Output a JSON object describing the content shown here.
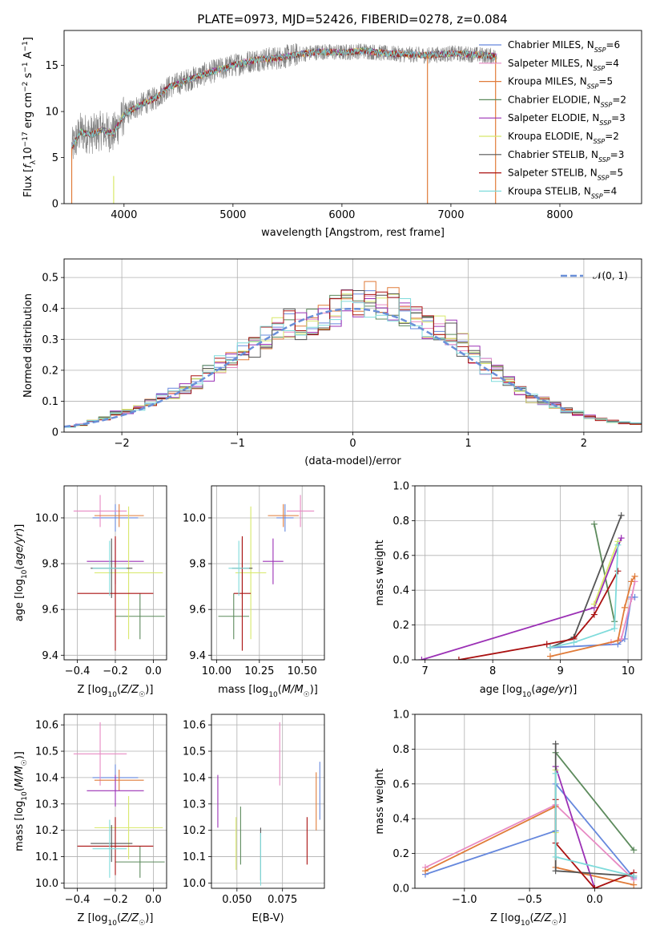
{
  "figure": {
    "title": "PLATE=0973, MJD=52426, FIBERID=0278, z=0.084"
  },
  "colors": {
    "Chabrier MILES": "#6688dd",
    "Salpeter MILES": "#e78ac3",
    "Kroupa MILES": "#e07b39",
    "Chabrier ELODIE": "#5c8a5c",
    "Salpeter ELODIE": "#9b30b5",
    "Kroupa ELODIE": "#d8e86a",
    "Chabrier STELIB": "#555555",
    "Salpeter STELIB": "#aa1111",
    "Kroupa STELIB": "#7fdbdb",
    "data": "#808080",
    "normal": "#6a8fd8"
  },
  "legend": {
    "spectrum": [
      {
        "label": "Chabrier MILES",
        "nssp": "6"
      },
      {
        "label": "Salpeter MILES",
        "nssp": "4"
      },
      {
        "label": "Kroupa MILES",
        "nssp": "5"
      },
      {
        "label": "Chabrier ELODIE",
        "nssp": "2"
      },
      {
        "label": "Salpeter ELODIE",
        "nssp": "3"
      },
      {
        "label": "Kroupa ELODIE",
        "nssp": "2"
      },
      {
        "label": "Chabrier STELIB",
        "nssp": "3"
      },
      {
        "label": "Salpeter STELIB",
        "nssp": "5"
      },
      {
        "label": "Kroupa STELIB",
        "nssp": "4"
      }
    ],
    "hist": "𝒩(0, 1)"
  },
  "chart_data": [
    {
      "id": "spectrum",
      "type": "line",
      "xlabel": "wavelength [Angstrom, rest frame]",
      "ylabel": "Flux [f_λ10^-17 erg cm^-2 s^-1 A^-1]",
      "xlim": [
        3450,
        8750
      ],
      "ylim": [
        0,
        18.8
      ],
      "xticks": [
        4000,
        5000,
        6000,
        7000,
        8000
      ],
      "yticks": [
        0,
        5,
        10,
        15
      ],
      "continuum": {
        "x": [
          3520,
          3600,
          3700,
          3800,
          3900,
          4000,
          4100,
          4200,
          4300,
          4400,
          4600,
          4800,
          5000,
          5200,
          5400,
          5600,
          5800,
          6000,
          6200,
          6400,
          6600,
          6800,
          7000,
          7200,
          7400
        ],
        "y": [
          6.0,
          7.8,
          7.5,
          8.0,
          7.6,
          9.6,
          10.4,
          11.0,
          11.5,
          12.6,
          13.5,
          14.3,
          15.0,
          15.6,
          15.8,
          16.2,
          16.5,
          16.4,
          16.6,
          16.3,
          16.2,
          16.1,
          16.3,
          16.2,
          16.0
        ]
      },
      "observed_range": [
        3520,
        7420
      ],
      "model_range": [
        3520,
        7420
      ],
      "spikes": [
        {
          "x": 6785,
          "series": "Kroupa MILES"
        },
        {
          "x": 7410,
          "series": "Kroupa MILES"
        },
        {
          "x": 3520,
          "series": "Kroupa MILES"
        }
      ]
    },
    {
      "id": "residuals",
      "type": "histogram",
      "xlabel": "(data-model)/error",
      "ylabel": "Normed distribution",
      "xlim": [
        -2.5,
        2.5
      ],
      "ylim": [
        0,
        0.56
      ],
      "xticks": [
        -2,
        -1,
        0,
        1,
        2
      ],
      "yticks": [
        0,
        0.1,
        0.2,
        0.3,
        0.4,
        0.5
      ],
      "bins": [
        -2.5,
        -2.4,
        -2.3,
        -2.2,
        -2.1,
        -2.0,
        -1.9,
        -1.8,
        -1.7,
        -1.6,
        -1.5,
        -1.4,
        -1.3,
        -1.2,
        -1.1,
        -1.0,
        -0.9,
        -0.8,
        -0.7,
        -0.6,
        -0.5,
        -0.4,
        -0.3,
        -0.2,
        -0.1,
        0.0,
        0.1,
        0.2,
        0.3,
        0.4,
        0.5,
        0.6,
        0.7,
        0.8,
        0.9,
        1.0,
        1.1,
        1.2,
        1.3,
        1.4,
        1.5,
        1.6,
        1.7,
        1.8,
        1.9,
        2.0,
        2.1,
        2.2,
        2.3,
        2.4,
        2.5
      ],
      "base_density": [
        0.018,
        0.023,
        0.035,
        0.045,
        0.06,
        0.065,
        0.08,
        0.095,
        0.11,
        0.125,
        0.14,
        0.16,
        0.19,
        0.22,
        0.24,
        0.26,
        0.28,
        0.31,
        0.33,
        0.35,
        0.34,
        0.36,
        0.38,
        0.39,
        0.41,
        0.43,
        0.43,
        0.42,
        0.41,
        0.39,
        0.36,
        0.34,
        0.33,
        0.32,
        0.28,
        0.25,
        0.21,
        0.19,
        0.16,
        0.13,
        0.11,
        0.1,
        0.085,
        0.07,
        0.06,
        0.05,
        0.042,
        0.035,
        0.03,
        0.028
      ]
    },
    {
      "id": "age-vs-Z",
      "type": "scatter",
      "xlabel": "Z [log10(Z/Z☉)]",
      "ylabel": "age [log10(age/yr)]",
      "xlim": [
        -0.47,
        0.07
      ],
      "ylim": [
        9.38,
        10.14
      ],
      "xticks": [
        -0.4,
        -0.2,
        0.0
      ],
      "yticks": [
        9.4,
        9.6,
        9.8,
        10.0
      ],
      "points": [
        {
          "series": "Chabrier MILES",
          "x": -0.2,
          "xerr": 0.12,
          "y": 10.0,
          "yerr": 0.06
        },
        {
          "series": "Salpeter MILES",
          "x": -0.28,
          "xerr": 0.14,
          "y": 10.03,
          "yerr": 0.07
        },
        {
          "series": "Kroupa MILES",
          "x": -0.18,
          "xerr": 0.13,
          "y": 10.01,
          "yerr": 0.05
        },
        {
          "series": "Chabrier ELODIE",
          "x": -0.07,
          "xerr": 0.13,
          "y": 9.57,
          "yerr": 0.1
        },
        {
          "series": "Salpeter ELODIE",
          "x": -0.2,
          "xerr": 0.15,
          "y": 9.81,
          "yerr": 0.1
        },
        {
          "series": "Kroupa ELODIE",
          "x": -0.13,
          "xerr": 0.18,
          "y": 9.76,
          "yerr": 0.29
        },
        {
          "series": "Chabrier STELIB",
          "x": -0.22,
          "xerr": 0.11,
          "y": 9.78,
          "yerr": 0.13
        },
        {
          "series": "Salpeter STELIB",
          "x": -0.2,
          "xerr": 0.2,
          "y": 9.67,
          "yerr": 0.25
        },
        {
          "series": "Kroupa STELIB",
          "x": -0.23,
          "xerr": 0.09,
          "y": 9.78,
          "yerr": 0.12
        }
      ]
    },
    {
      "id": "age-vs-mass",
      "type": "scatter",
      "xlabel": "mass [log10(M/M☉)]",
      "ylabel": "",
      "xlim": [
        9.97,
        10.63
      ],
      "ylim": [
        9.38,
        10.14
      ],
      "xticks": [
        10.0,
        10.25,
        10.5
      ],
      "yticks": [
        9.4,
        9.6,
        9.8,
        10.0
      ],
      "points": [
        {
          "series": "Chabrier MILES",
          "x": 10.4,
          "xerr": 0.05,
          "y": 10.0,
          "yerr": 0.06
        },
        {
          "series": "Salpeter MILES",
          "x": 10.49,
          "xerr": 0.08,
          "y": 10.03,
          "yerr": 0.07
        },
        {
          "series": "Kroupa MILES",
          "x": 10.39,
          "xerr": 0.09,
          "y": 10.01,
          "yerr": 0.05
        },
        {
          "series": "Chabrier ELODIE",
          "x": 10.1,
          "xerr": 0.09,
          "y": 9.57,
          "yerr": 0.1
        },
        {
          "series": "Salpeter ELODIE",
          "x": 10.33,
          "xerr": 0.06,
          "y": 9.81,
          "yerr": 0.1
        },
        {
          "series": "Kroupa ELODIE",
          "x": 10.2,
          "xerr": 0.09,
          "y": 9.76,
          "yerr": 0.29
        },
        {
          "series": "Chabrier STELIB",
          "x": 10.15,
          "xerr": 0.06,
          "y": 9.78,
          "yerr": 0.13
        },
        {
          "series": "Salpeter STELIB",
          "x": 10.15,
          "xerr": 0.05,
          "y": 9.67,
          "yerr": 0.25
        },
        {
          "series": "Kroupa STELIB",
          "x": 10.13,
          "xerr": 0.06,
          "y": 9.78,
          "yerr": 0.12
        }
      ]
    },
    {
      "id": "mass-weight-vs-age",
      "type": "line",
      "xlabel": "age [log10(age/yr)]",
      "ylabel": "mass weight",
      "xlim": [
        6.85,
        10.2
      ],
      "ylim": [
        0,
        1.0
      ],
      "xticks": [
        7,
        8,
        9,
        10
      ],
      "yticks": [
        0.0,
        0.2,
        0.4,
        0.6,
        0.8,
        1.0
      ],
      "series": [
        {
          "name": "Chabrier MILES",
          "x": [
            8.85,
            9.85,
            9.95,
            10.05,
            10.1
          ],
          "y": [
            0.07,
            0.09,
            0.12,
            0.36,
            0.36
          ]
        },
        {
          "name": "Salpeter MILES",
          "x": [
            9.75,
            9.9,
            10.05,
            10.1
          ],
          "y": [
            0.1,
            0.12,
            0.35,
            0.45
          ]
        },
        {
          "name": "Kroupa MILES",
          "x": [
            8.85,
            9.85,
            9.95,
            10.05,
            10.1
          ],
          "y": [
            0.02,
            0.11,
            0.3,
            0.45,
            0.48
          ]
        },
        {
          "name": "Chabrier ELODIE",
          "x": [
            9.8,
            9.5
          ],
          "y": [
            0.22,
            0.78
          ]
        },
        {
          "name": "Salpeter ELODIE",
          "x": [
            6.95,
            9.5,
            9.9
          ],
          "y": [
            0.0,
            0.3,
            0.7
          ]
        },
        {
          "name": "Kroupa ELODIE",
          "x": [
            9.5,
            9.85
          ],
          "y": [
            0.32,
            0.68
          ]
        },
        {
          "name": "Chabrier STELIB",
          "x": [
            8.85,
            9.2,
            9.9
          ],
          "y": [
            0.07,
            0.13,
            0.83
          ]
        },
        {
          "name": "Salpeter STELIB",
          "x": [
            7.5,
            8.8,
            9.2,
            9.5,
            9.85
          ],
          "y": [
            0.0,
            0.09,
            0.12,
            0.26,
            0.51
          ]
        },
        {
          "name": "Kroupa STELIB",
          "x": [
            8.85,
            9.2,
            9.8,
            9.85
          ],
          "y": [
            0.07,
            0.1,
            0.18,
            0.66
          ]
        }
      ]
    },
    {
      "id": "mass-vs-Z",
      "type": "scatter",
      "xlabel": "Z [log10(Z/Z☉)]",
      "ylabel": "mass [log10(M/M☉)]",
      "xlim": [
        -0.47,
        0.07
      ],
      "ylim": [
        9.98,
        10.64
      ],
      "xticks": [
        -0.4,
        -0.2,
        0.0
      ],
      "yticks": [
        10.0,
        10.1,
        10.2,
        10.3,
        10.4,
        10.5,
        10.6
      ],
      "points": [
        {
          "series": "Chabrier MILES",
          "x": -0.2,
          "xerr": 0.12,
          "y": 10.4,
          "yerr": 0.05
        },
        {
          "series": "Salpeter MILES",
          "x": -0.28,
          "xerr": 0.14,
          "y": 10.49,
          "yerr": 0.12
        },
        {
          "series": "Kroupa MILES",
          "x": -0.18,
          "xerr": 0.13,
          "y": 10.39,
          "yerr": 0.04
        },
        {
          "series": "Chabrier ELODIE",
          "x": -0.07,
          "xerr": 0.13,
          "y": 10.08,
          "yerr": 0.06
        },
        {
          "series": "Salpeter ELODIE",
          "x": -0.2,
          "xerr": 0.15,
          "y": 10.35,
          "yerr": 0.06
        },
        {
          "series": "Kroupa ELODIE",
          "x": -0.13,
          "xerr": 0.18,
          "y": 10.21,
          "yerr": 0.12
        },
        {
          "series": "Chabrier STELIB",
          "x": -0.22,
          "xerr": 0.11,
          "y": 10.15,
          "yerr": 0.07
        },
        {
          "series": "Salpeter STELIB",
          "x": -0.2,
          "xerr": 0.2,
          "y": 10.14,
          "yerr": 0.11
        },
        {
          "series": "Kroupa STELIB",
          "x": -0.23,
          "xerr": 0.09,
          "y": 10.13,
          "yerr": 0.11
        }
      ]
    },
    {
      "id": "mass-vs-ebv",
      "type": "scatter",
      "xlabel": "E(B-V)",
      "ylabel": "",
      "xlim": [
        0.036,
        0.098
      ],
      "ylim": [
        9.98,
        10.64
      ],
      "xticks": [
        0.05,
        0.075
      ],
      "yticks": [
        10.0,
        10.1,
        10.2,
        10.3,
        10.4,
        10.5,
        10.6
      ],
      "points": [
        {
          "series": "Chabrier MILES",
          "x": 0.0955,
          "y": 10.35,
          "yerr": 0.11
        },
        {
          "series": "Salpeter MILES",
          "x": 0.0735,
          "y": 10.49,
          "yerr": 0.12
        },
        {
          "series": "Kroupa MILES",
          "x": 0.0935,
          "y": 10.31,
          "yerr": 0.11
        },
        {
          "series": "Chabrier ELODIE",
          "x": 0.052,
          "y": 10.18,
          "yerr": 0.11
        },
        {
          "series": "Salpeter ELODIE",
          "x": 0.0395,
          "y": 10.31,
          "yerr": 0.1
        },
        {
          "series": "Kroupa ELODIE",
          "x": 0.0495,
          "y": 10.15,
          "yerr": 0.1
        },
        {
          "series": "Chabrier STELIB",
          "x": 0.063,
          "y": 10.11,
          "yerr": 0.1
        },
        {
          "series": "Salpeter STELIB",
          "x": 0.0885,
          "y": 10.16,
          "yerr": 0.09
        },
        {
          "series": "Kroupa STELIB",
          "x": 0.063,
          "y": 10.09,
          "yerr": 0.1
        }
      ]
    },
    {
      "id": "mass-weight-vs-Z",
      "type": "line",
      "xlabel": "Z [log10(Z/Z☉)]",
      "ylabel": "mass weight",
      "xlim": [
        -1.38,
        0.36
      ],
      "ylim": [
        0,
        1.0
      ],
      "xticks": [
        -1.0,
        -0.5,
        0.0
      ],
      "yticks": [
        0.0,
        0.2,
        0.4,
        0.6,
        0.8,
        1.0
      ],
      "series": [
        {
          "name": "Chabrier MILES",
          "x": [
            -1.3,
            -0.3,
            -0.3,
            0.3
          ],
          "y": [
            0.08,
            0.33,
            0.6,
            0.06
          ]
        },
        {
          "name": "Salpeter MILES",
          "x": [
            -1.3,
            -0.3,
            0.3
          ],
          "y": [
            0.12,
            0.48,
            0.05
          ]
        },
        {
          "name": "Kroupa MILES",
          "x": [
            -1.3,
            -0.3,
            -0.3,
            0.3
          ],
          "y": [
            0.1,
            0.47,
            0.12,
            0.02
          ]
        },
        {
          "name": "Chabrier ELODIE",
          "x": [
            -0.3,
            0.3
          ],
          "y": [
            0.78,
            0.22
          ]
        },
        {
          "name": "Salpeter ELODIE",
          "x": [
            -0.3,
            0.0
          ],
          "y": [
            0.7,
            0.0
          ]
        },
        {
          "name": "Kroupa ELODIE",
          "x": [
            -0.3,
            -0.3
          ],
          "y": [
            0.68,
            0.32
          ]
        },
        {
          "name": "Chabrier STELIB",
          "x": [
            -0.3,
            -0.3,
            0.3
          ],
          "y": [
            0.83,
            0.1,
            0.07
          ]
        },
        {
          "name": "Salpeter STELIB",
          "x": [
            -0.3,
            -0.3,
            0.0,
            0.3
          ],
          "y": [
            0.51,
            0.26,
            0.0,
            0.09
          ]
        },
        {
          "name": "Kroupa STELIB",
          "x": [
            -0.3,
            -0.3,
            0.3
          ],
          "y": [
            0.66,
            0.18,
            0.07
          ]
        }
      ]
    }
  ]
}
